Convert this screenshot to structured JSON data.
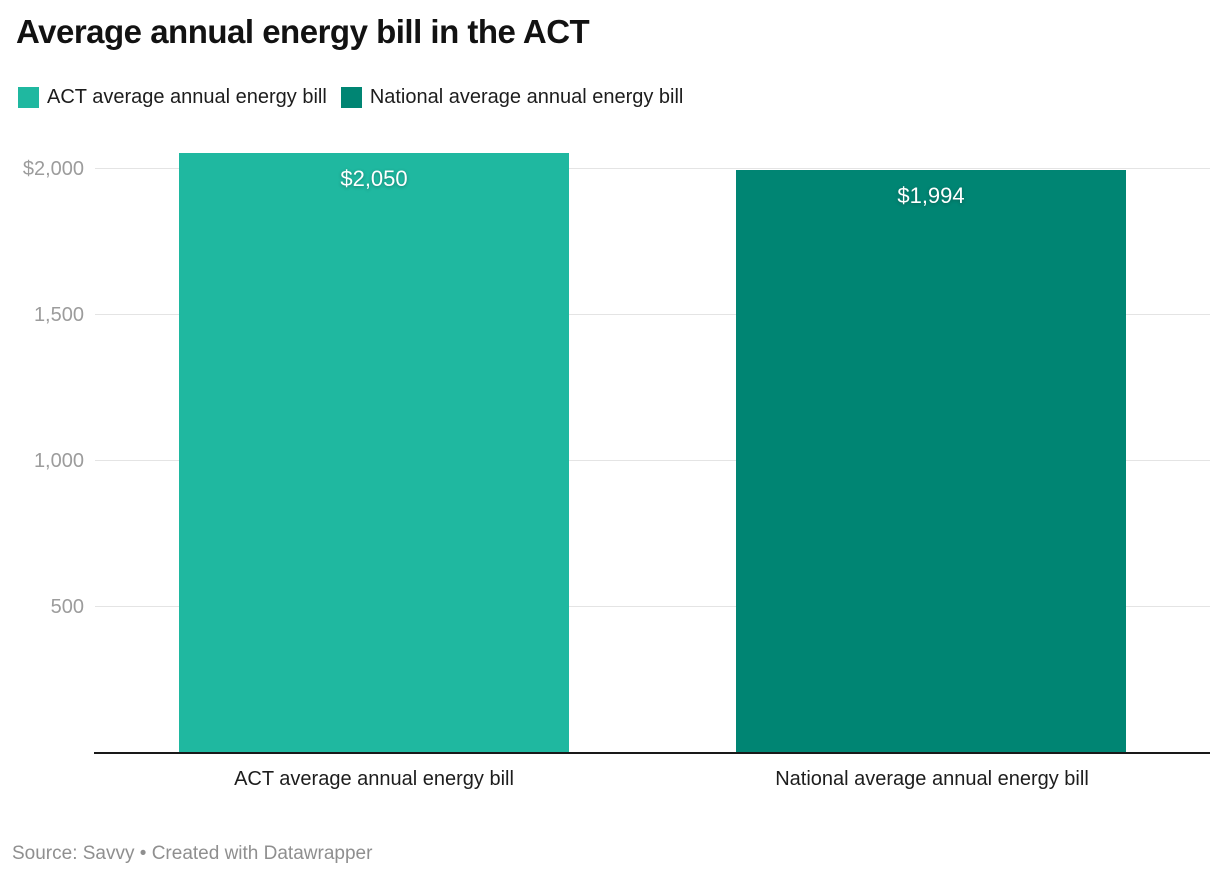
{
  "header": {
    "title": "Average annual energy bill in the ACT"
  },
  "legend": {
    "items": [
      {
        "label": "ACT average annual energy bill",
        "color": "#1fb8a0"
      },
      {
        "label": "National average annual energy bill",
        "color": "#008573"
      }
    ]
  },
  "footer": {
    "text": "Source: Savvy • Created with Datawrapper"
  },
  "chart_data": {
    "type": "bar",
    "title": "Average annual energy bill in the ACT",
    "categories": [
      "ACT average annual energy bill",
      "National average annual energy bill"
    ],
    "values": [
      2050,
      1994
    ],
    "value_labels": [
      "$2,050",
      "$1,994"
    ],
    "bar_colors": [
      "#1fb8a0",
      "#008573"
    ],
    "legend_entries": [
      "ACT average annual energy bill",
      "National average annual energy bill"
    ],
    "yticks": [
      {
        "value": 2000,
        "label": "$2,000"
      },
      {
        "value": 1500,
        "label": "1,500"
      },
      {
        "value": 1000,
        "label": "1,000"
      },
      {
        "value": 500,
        "label": "500"
      }
    ],
    "ylim": [
      0,
      2136
    ],
    "grid": true,
    "legend_position": "top",
    "source": "Savvy"
  }
}
